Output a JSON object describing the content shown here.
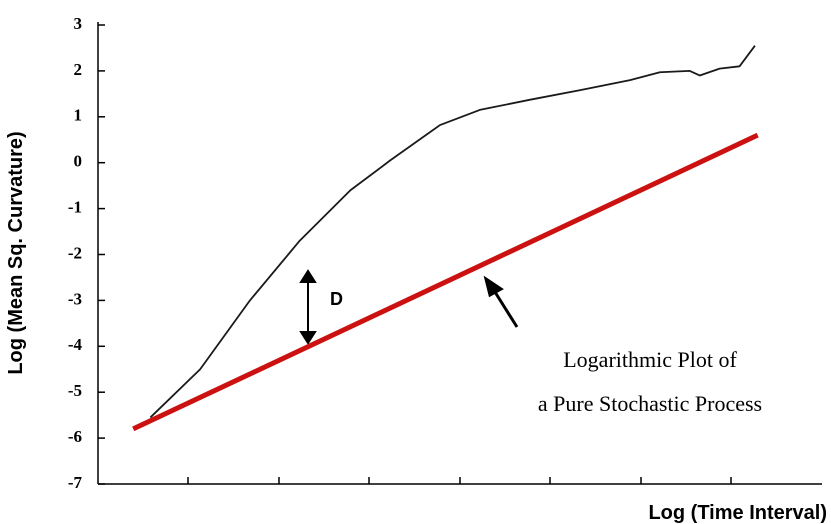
{
  "chart_data": {
    "type": "line",
    "xlabel": "Log (Time Interval)",
    "ylabel": "Log (Mean Sq. Curvature)",
    "xlim": [
      0,
      8
    ],
    "ylim": [
      -7,
      3
    ],
    "yticks": [
      3,
      2,
      1,
      0,
      -1,
      -2,
      -3,
      -4,
      -5,
      -6,
      -7
    ],
    "lines": [
      {
        "color": "#1a1a1a",
        "x": [
          0.59,
          1.14,
          1.69,
          2.24,
          2.8,
          3.24,
          3.79,
          4.23,
          4.78,
          5.34,
          5.89,
          6.22,
          6.55,
          6.66,
          6.88,
          7.1,
          7.27
        ],
        "values": [
          -5.55,
          -4.5,
          -3.0,
          -1.7,
          -0.6,
          0.05,
          0.82,
          1.15,
          1.37,
          1.58,
          1.8,
          1.97,
          2.0,
          1.9,
          2.05,
          2.1,
          2.55
        ]
      },
      {
        "color": "#cc1111",
        "x": [
          0.4,
          7.3
        ],
        "values": [
          -5.8,
          0.6
        ]
      }
    ],
    "annotations": [
      "D",
      "Logarithmic Plot of",
      "a Pure Stochastic Process"
    ]
  }
}
